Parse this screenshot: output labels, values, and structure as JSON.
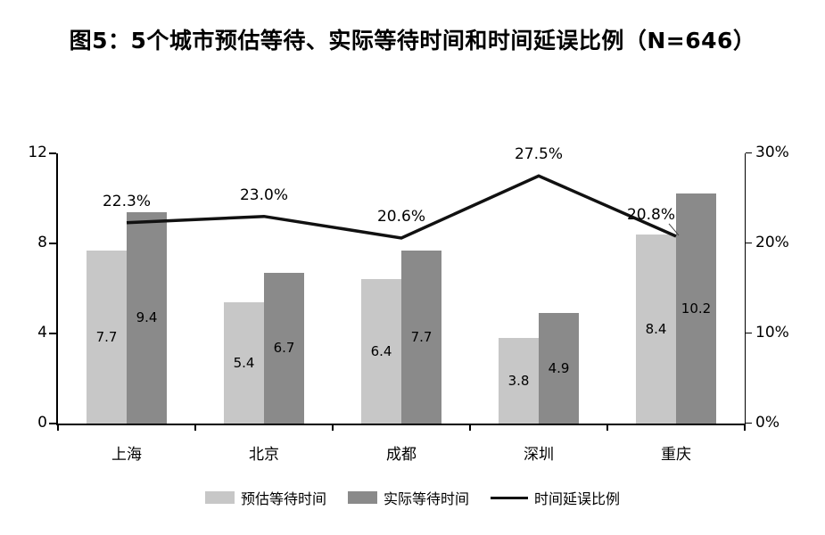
{
  "chart_data": {
    "type": "bar+line",
    "title": "图5：5个城市预估等待、实际等待时间和时间延误比例（N=646）",
    "categories": [
      "上海",
      "北京",
      "成都",
      "深圳",
      "重庆"
    ],
    "series": [
      {
        "name": "预估等待时间",
        "type": "bar",
        "color": "#c7c7c7",
        "values": [
          7.7,
          5.4,
          6.4,
          3.8,
          8.4
        ]
      },
      {
        "name": "实际等待时间",
        "type": "bar",
        "color": "#8a8a8a",
        "values": [
          9.4,
          6.7,
          7.7,
          4.9,
          10.2
        ]
      },
      {
        "name": "时间延误比例",
        "type": "line",
        "color": "#111111",
        "values_pct": [
          22.3,
          23.0,
          20.6,
          27.5,
          20.8
        ],
        "labels": [
          "22.3%",
          "23.0%",
          "20.6%",
          "27.5%",
          "20.8%"
        ],
        "label_dx": [
          0,
          0,
          0,
          0,
          -28
        ]
      }
    ],
    "left_axis": {
      "ticks": [
        "0",
        "4",
        "8",
        "12"
      ],
      "min": 0,
      "max": 12
    },
    "right_axis": {
      "ticks": [
        "0%",
        "10%",
        "20%",
        "30%"
      ],
      "min": 0,
      "max": 30
    },
    "legend_position": "bottom",
    "grid": false
  }
}
